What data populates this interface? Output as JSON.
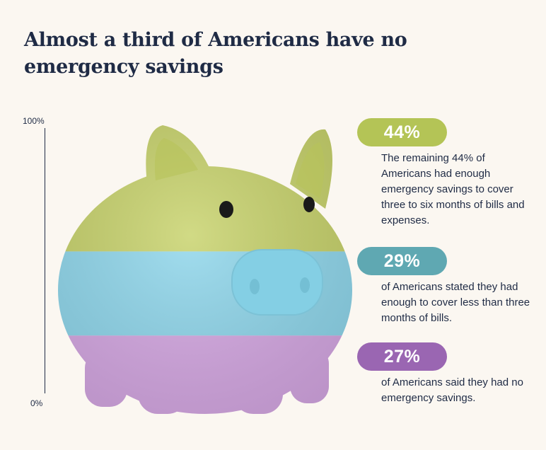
{
  "title": "Almost a third of Americans have no emergency savings",
  "chart_data": {
    "type": "stacked-bar",
    "title": "Almost a third of Americans have no emergency savings",
    "ylim": [
      0,
      100
    ],
    "ytick_labels": [
      "100%",
      "0%"
    ],
    "categories": [
      "3 to 6 months of bills",
      "Less than 3 months",
      "No emergency savings"
    ],
    "series": [
      {
        "name": "3 to 6 months of bills",
        "value": 44,
        "label": "44%",
        "color": "#b4c456",
        "description": "The remaining 44% of Americans had enough emergency savings to cover three to six months of bills and expenses."
      },
      {
        "name": "Less than 3 months",
        "value": 29,
        "label": "29%",
        "color": "#5fa8b2",
        "description": "of Americans stated they had enough to cover less than three months of bills."
      },
      {
        "name": "No emergency savings",
        "value": 27,
        "label": "27%",
        "color": "#9a66b2",
        "description": "of Americans said they had no emergency savings."
      }
    ]
  },
  "colors": {
    "band_green": "#c7d26a",
    "band_blue": "#8fd7ec",
    "band_purple": "#d6a8e4"
  }
}
